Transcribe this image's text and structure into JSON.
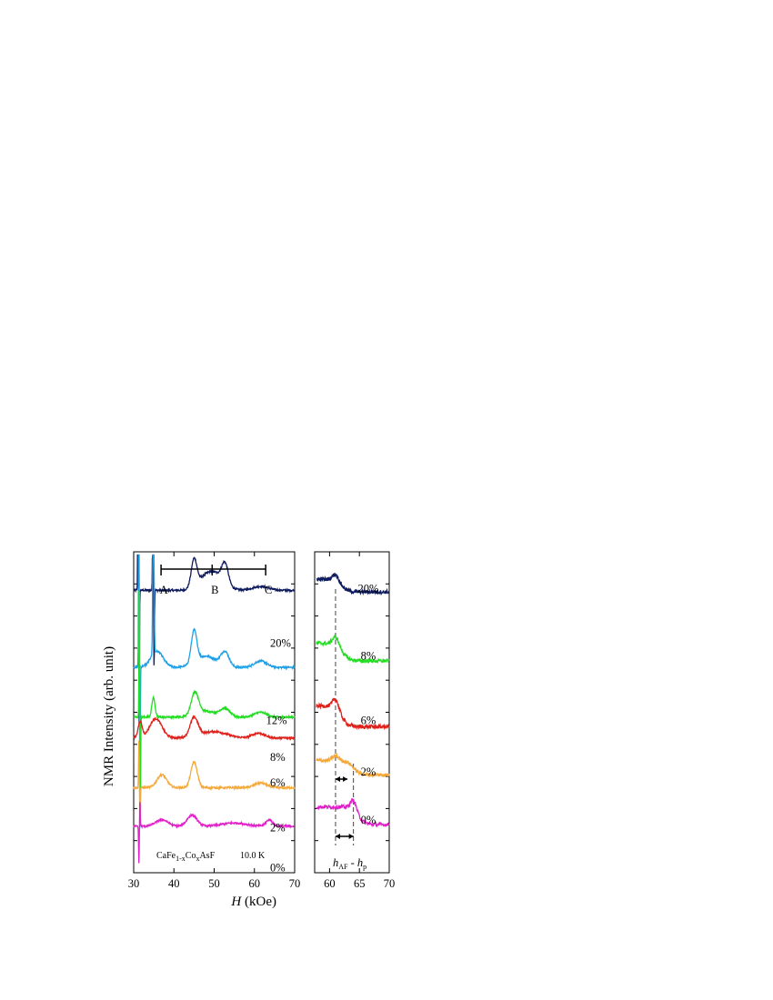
{
  "chart_data": [
    {
      "type": "line",
      "panel": "left",
      "ylabel": "NMR Intensity (arb. unit)",
      "xlabel_italic": "H",
      "xlabel_unit": " (kOe)",
      "xlim": [
        30,
        70
      ],
      "xticks": [
        "30",
        "40",
        "50",
        "60",
        "70"
      ],
      "annotation_formula": {
        "base1": "CaFe",
        "sub1": "1-x",
        "base2": "Co",
        "sub2": "x",
        "base3": "AsF"
      },
      "annotation_temp": "10.0 K",
      "markers": [
        {
          "label": "A",
          "x": 36.8
        },
        {
          "label": "B",
          "x": 49.5
        },
        {
          "label": "C",
          "x": 62.8
        }
      ],
      "series": [
        {
          "name": "20%",
          "color": "#0d1a5c",
          "baseline": 0.88,
          "peaks": [
            [
              31.1,
              0.62,
              0.08,
              "d"
            ],
            [
              34.8,
              0.36,
              0.1,
              "d"
            ],
            [
              45.0,
              0.085,
              0.7,
              "g"
            ],
            [
              47.5,
              0.03,
              2.0,
              "g"
            ],
            [
              50.5,
              0.045,
              2.2,
              "g"
            ],
            [
              52.7,
              0.06,
              0.8,
              "g"
            ],
            [
              61.5,
              0.012,
              2.0,
              "g"
            ]
          ],
          "label_x": 63.0,
          "label_y": 0.79
        },
        {
          "name": "12%",
          "color": "#1ea0e6",
          "baseline": 0.64,
          "peaks": [
            [
              31.3,
              0.8,
              0.08,
              "d"
            ],
            [
              34.9,
              0.55,
              0.15,
              "g"
            ],
            [
              35.8,
              0.05,
              1.5,
              "g"
            ],
            [
              45.0,
              0.1,
              0.7,
              "g"
            ],
            [
              48.0,
              0.035,
              2.5,
              "g"
            ],
            [
              52.7,
              0.045,
              1.0,
              "g"
            ],
            [
              61.5,
              0.02,
              1.5,
              "g"
            ]
          ],
          "label_x": 62.0,
          "label_y": 0.55
        },
        {
          "name": "8%",
          "color": "#22dd22",
          "baseline": 0.485,
          "peaks": [
            [
              31.4,
              0.45,
              0.08,
              "d"
            ],
            [
              34.9,
              0.06,
              0.4,
              "g"
            ],
            [
              45.2,
              0.07,
              0.9,
              "g"
            ],
            [
              48.0,
              0.018,
              2.5,
              "g"
            ],
            [
              52.7,
              0.025,
              1.2,
              "g"
            ],
            [
              61.5,
              0.015,
              1.5,
              "g"
            ]
          ],
          "label_x": 63.0,
          "label_y": 0.435
        },
        {
          "name": "6%",
          "color": "#e0201a",
          "baseline": 0.42,
          "peaks": [
            [
              31.6,
              0.05,
              0.5,
              "g"
            ],
            [
              35.5,
              0.06,
              1.5,
              "g"
            ],
            [
              45.0,
              0.06,
              1.0,
              "g"
            ],
            [
              50.0,
              0.02,
              3.0,
              "g"
            ],
            [
              61.0,
              0.015,
              1.5,
              "g"
            ]
          ],
          "label_x": 63.0,
          "label_y": 0.355
        },
        {
          "name": "2%",
          "color": "#f5a93a",
          "baseline": 0.265,
          "peaks": [
            [
              31.3,
              0.15,
              0.08,
              "d"
            ],
            [
              37.0,
              0.04,
              1.2,
              "g"
            ],
            [
              45.0,
              0.08,
              0.8,
              "g"
            ],
            [
              61.5,
              0.015,
              1.5,
              "g"
            ]
          ],
          "label_x": 63.0,
          "label_y": 0.215
        },
        {
          "name": "0%",
          "color": "#e020c8",
          "baseline": 0.145,
          "peaks": [
            [
              31.3,
              -0.12,
              0.08,
              "d"
            ],
            [
              37.0,
              0.02,
              1.5,
              "g"
            ],
            [
              44.5,
              0.035,
              1.2,
              "g"
            ],
            [
              55.0,
              0.01,
              3.0,
              "g"
            ],
            [
              63.7,
              0.02,
              0.8,
              "g"
            ]
          ],
          "label_x": 63.0,
          "label_y": 0.09
        }
      ]
    },
    {
      "type": "line",
      "panel": "right",
      "xlim": [
        57.5,
        70
      ],
      "xticks": [
        "60",
        "65",
        "70"
      ],
      "annotation_label": {
        "h1": "h",
        "sub1": "AF",
        "sep": " - ",
        "h2": "h",
        "sub2": "p"
      },
      "dashed_lines_x": [
        61.0,
        64.0
      ],
      "series": [
        {
          "name": "20%",
          "color": "#0d1a5c",
          "baseline": 0.885,
          "label_y": 0.93
        },
        {
          "name": "8%",
          "color": "#22dd22",
          "baseline": 0.665,
          "label_y": 0.72
        },
        {
          "name": "6%",
          "color": "#e0201a",
          "baseline": 0.47,
          "label_y": 0.52
        },
        {
          "name": "2%",
          "color": "#f5a93a",
          "baseline": 0.315,
          "label_y": 0.36
        },
        {
          "name": "0%",
          "color": "#e020c8",
          "baseline": 0.16,
          "label_y": 0.21
        }
      ]
    }
  ]
}
